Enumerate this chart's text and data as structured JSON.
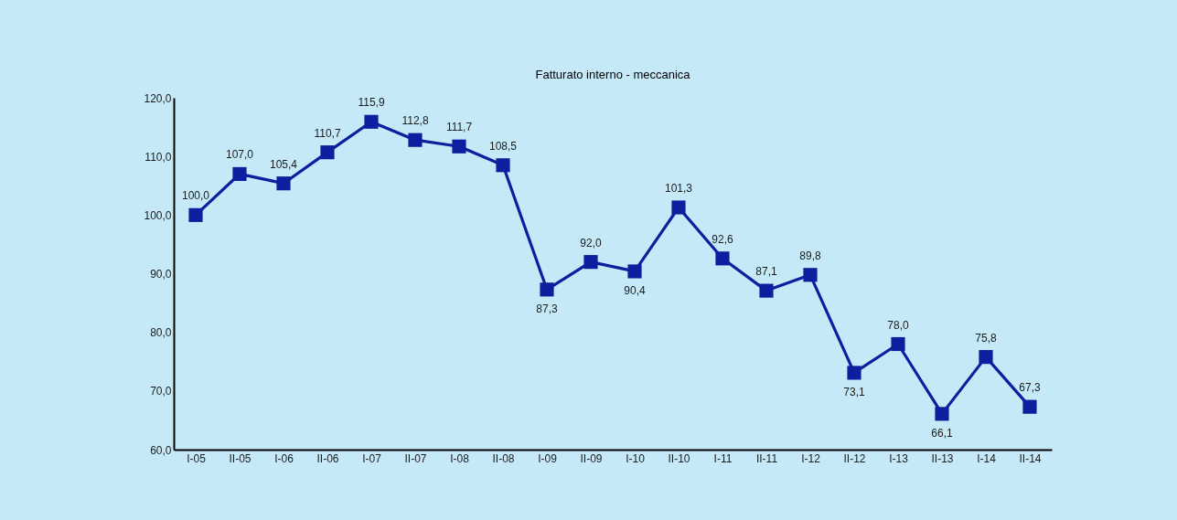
{
  "chart_data": {
    "type": "line",
    "title": "Fatturato interno - meccanica",
    "categories": [
      "I-05",
      "II-05",
      "I-06",
      "II-06",
      "I-07",
      "II-07",
      "I-08",
      "II-08",
      "I-09",
      "II-09",
      "I-10",
      "II-10",
      "I-11",
      "II-11",
      "I-12",
      "II-12",
      "I-13",
      "II-13",
      "I-14",
      "II-14"
    ],
    "values": [
      100.0,
      107.0,
      105.4,
      110.7,
      115.9,
      112.8,
      111.7,
      108.5,
      87.3,
      92.0,
      90.4,
      101.3,
      92.6,
      87.1,
      89.8,
      73.1,
      78.0,
      66.1,
      75.8,
      67.3
    ],
    "value_labels": [
      "100,0",
      "107,0",
      "105,4",
      "110,7",
      "115,9",
      "112,8",
      "111,7",
      "108,5",
      "87,3",
      "92,0",
      "90,4",
      "101,3",
      "92,6",
      "87,1",
      "89,8",
      "73,1",
      "78,0",
      "66,1",
      "75,8",
      "67,3"
    ],
    "color": "#0b1f9f",
    "marker": "square",
    "line_style": "solid",
    "ylim": [
      60,
      120
    ],
    "yticks": [
      {
        "value": 60,
        "label": "60,0"
      },
      {
        "value": 70,
        "label": "70,0"
      },
      {
        "value": 80,
        "label": "80,0"
      },
      {
        "value": 90,
        "label": "90,0"
      },
      {
        "value": 100,
        "label": "100,0"
      },
      {
        "value": 110,
        "label": "110,0"
      },
      {
        "value": 120,
        "label": "120,0"
      }
    ]
  }
}
